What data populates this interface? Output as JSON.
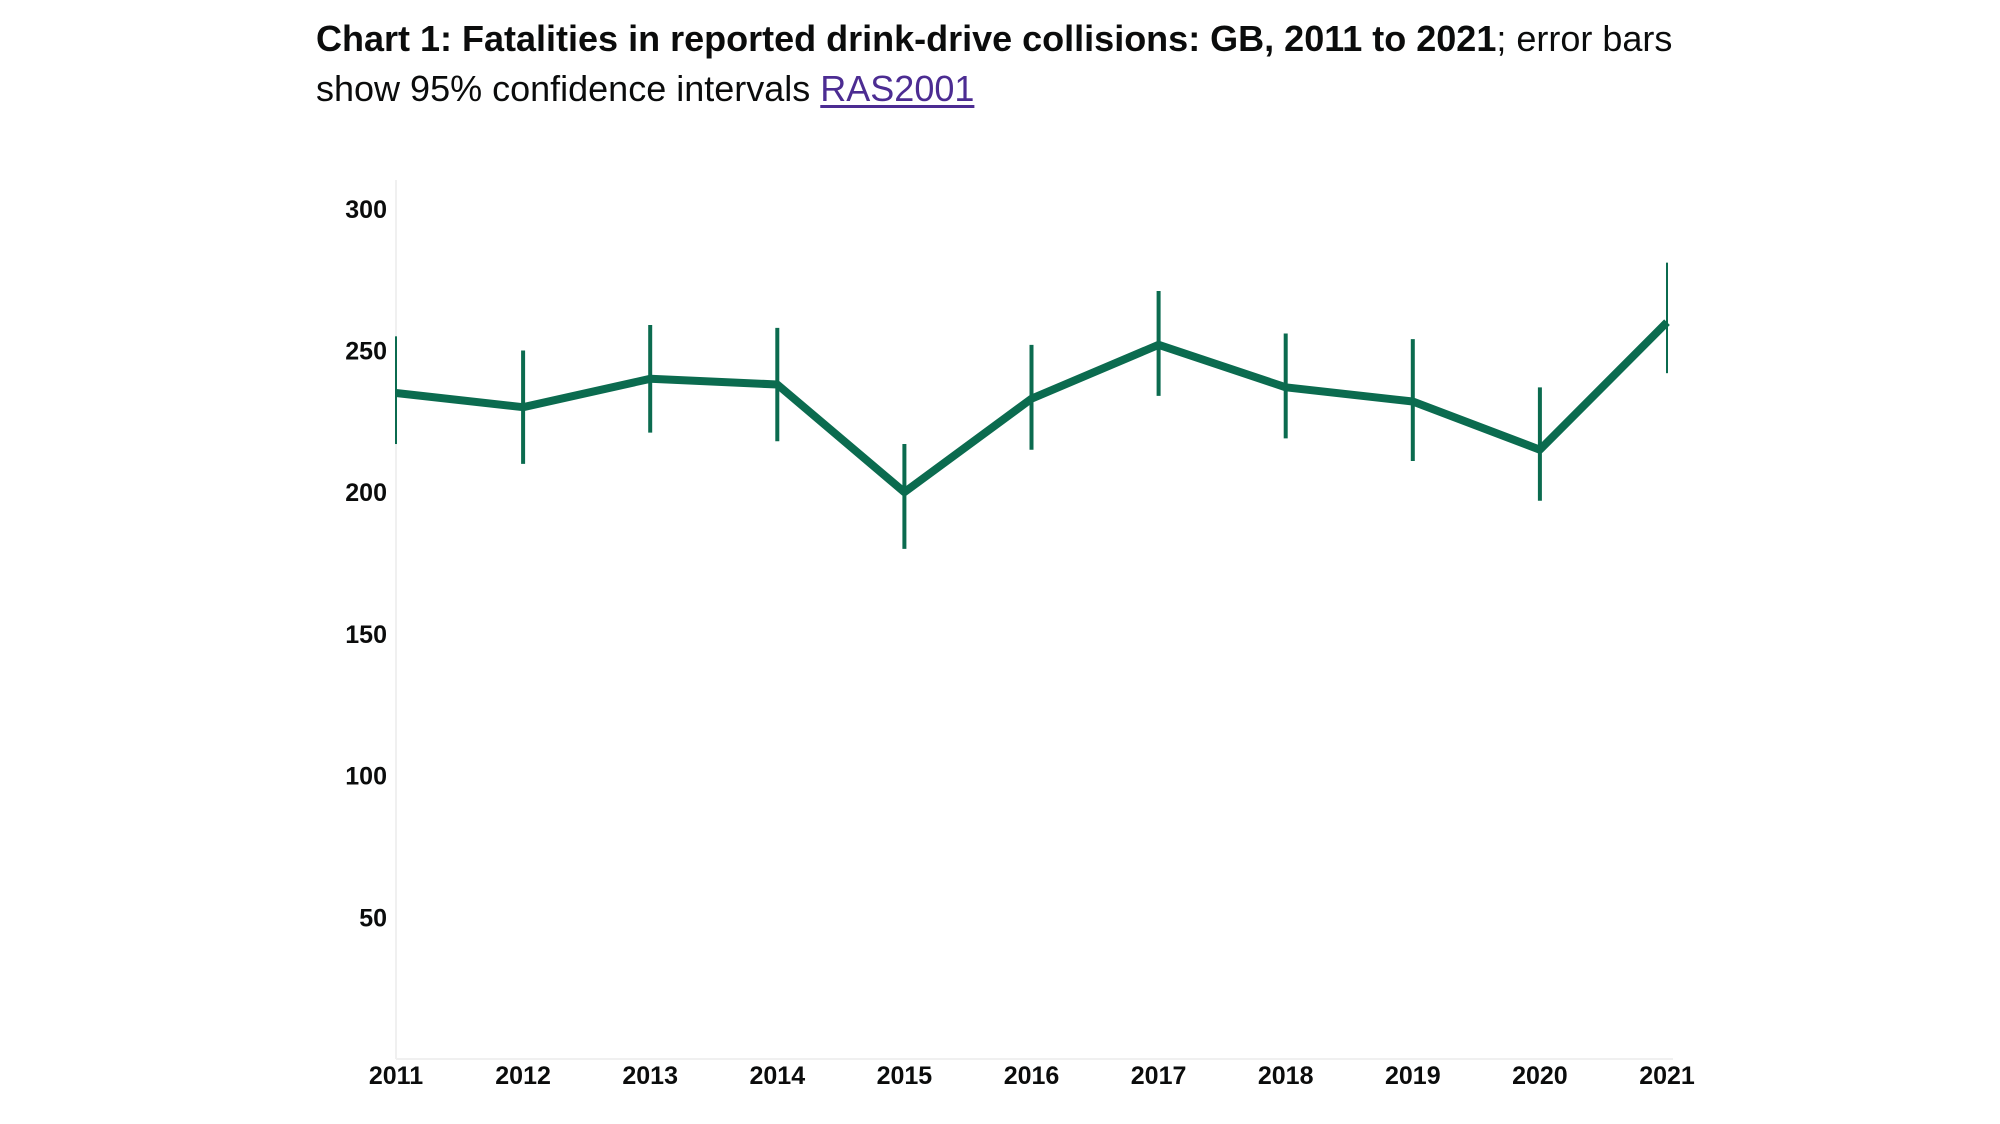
{
  "heading": {
    "title": "Chart 1: Fatalities in reported drink-drive collisions: GB, 2011 to 2021",
    "subtitle_text": "; error bars show 95% confidence intervals ",
    "link_label": "RAS2001"
  },
  "chart_data": {
    "type": "line",
    "title": "Chart 1: Fatalities in reported drink-drive collisions: GB, 2011 to 2021",
    "xlabel": "",
    "ylabel": "",
    "categories": [
      "2011",
      "2012",
      "2013",
      "2014",
      "2015",
      "2016",
      "2017",
      "2018",
      "2019",
      "2020",
      "2021"
    ],
    "series": [
      {
        "values": [
          235,
          230,
          240,
          238,
          200,
          233,
          252,
          237,
          232,
          215,
          260
        ],
        "lower": [
          217,
          210,
          221,
          218,
          180,
          215,
          234,
          219,
          211,
          197,
          242
        ],
        "upper": [
          255,
          250,
          259,
          258,
          217,
          252,
          271,
          256,
          254,
          237,
          281
        ]
      }
    ],
    "yticks": [
      50,
      100,
      150,
      200,
      250,
      300
    ],
    "ylim": [
      0,
      310
    ],
    "grid": false,
    "color": "#00703c"
  },
  "colors": {
    "line": "#0b6b4f",
    "link": "#4c2c92",
    "axis": "#f0f0f0"
  }
}
